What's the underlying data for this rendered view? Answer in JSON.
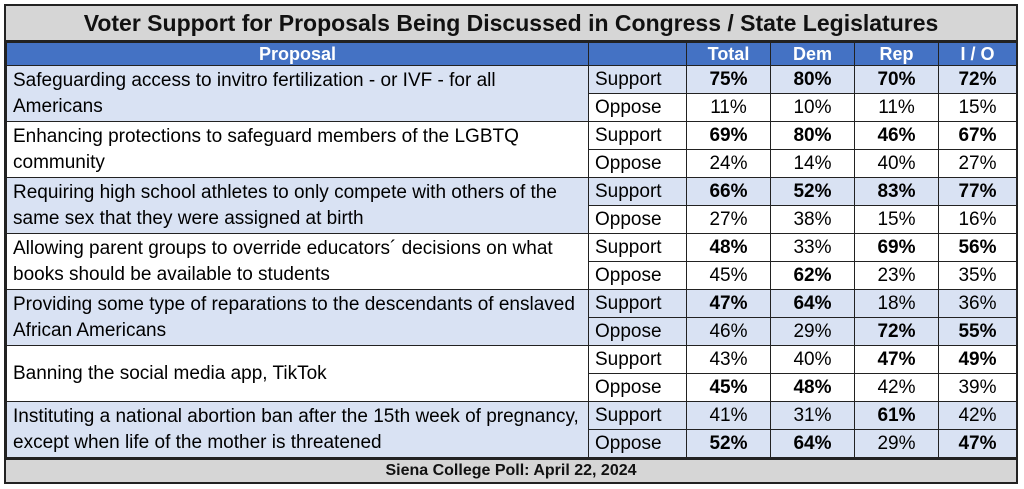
{
  "title": "Voter Support for Proposals Being Discussed in Congress / State Legislatures",
  "headers": {
    "proposal": "Proposal",
    "response": "",
    "total": "Total",
    "dem": "Dem",
    "rep": "Rep",
    "io": "I / O"
  },
  "rows": [
    {
      "proposal": "Safeguarding access to invitro fertilization - or IVF - for all Americans",
      "support": {
        "label": "Support",
        "total": "75%",
        "dem": "80%",
        "rep": "70%",
        "io": "72%"
      },
      "oppose": {
        "label": "Oppose",
        "total": "11%",
        "dem": "10%",
        "rep": "11%",
        "io": "15%"
      }
    },
    {
      "proposal": "Enhancing protections to safeguard members of the LGBTQ community",
      "support": {
        "label": "Support",
        "total": "69%",
        "dem": "80%",
        "rep": "46%",
        "io": "67%"
      },
      "oppose": {
        "label": "Oppose",
        "total": "24%",
        "dem": "14%",
        "rep": "40%",
        "io": "27%"
      }
    },
    {
      "proposal": "Requiring high school athletes to only compete with others of the same sex that they were assigned at birth",
      "support": {
        "label": "Support",
        "total": "66%",
        "dem": "52%",
        "rep": "83%",
        "io": "77%"
      },
      "oppose": {
        "label": "Oppose",
        "total": "27%",
        "dem": "38%",
        "rep": "15%",
        "io": "16%"
      }
    },
    {
      "proposal": "Allowing parent groups to override educators´ decisions on what books should be available to students",
      "support": {
        "label": "Support",
        "total": "48%",
        "dem": "33%",
        "rep": "69%",
        "io": "56%"
      },
      "oppose": {
        "label": "Oppose",
        "total": "45%",
        "dem": "62%",
        "rep": "23%",
        "io": "35%"
      }
    },
    {
      "proposal": "Providing some type of reparations to the descendants of enslaved African Americans",
      "support": {
        "label": "Support",
        "total": "47%",
        "dem": "64%",
        "rep": "18%",
        "io": "36%"
      },
      "oppose": {
        "label": "Oppose",
        "total": "46%",
        "dem": "29%",
        "rep": "72%",
        "io": "55%"
      }
    },
    {
      "proposal": "Banning the social media app, TikTok",
      "support": {
        "label": "Support",
        "total": "43%",
        "dem": "40%",
        "rep": "47%",
        "io": "49%"
      },
      "oppose": {
        "label": "Oppose",
        "total": "45%",
        "dem": "48%",
        "rep": "42%",
        "io": "39%"
      }
    },
    {
      "proposal": "Instituting a national abortion ban after the 15th week of pregnancy, except when life of the mother is threatened",
      "support": {
        "label": "Support",
        "total": "41%",
        "dem": "31%",
        "rep": "61%",
        "io": "42%"
      },
      "oppose": {
        "label": "Oppose",
        "total": "52%",
        "dem": "64%",
        "rep": "29%",
        "io": "47%"
      }
    }
  ],
  "footer": "Siena College Poll: April 22, 2024",
  "colors": {
    "header_blue": "#4472c4",
    "row_shade": "#d9e2f3",
    "title_gray": "#d6d6d6"
  }
}
